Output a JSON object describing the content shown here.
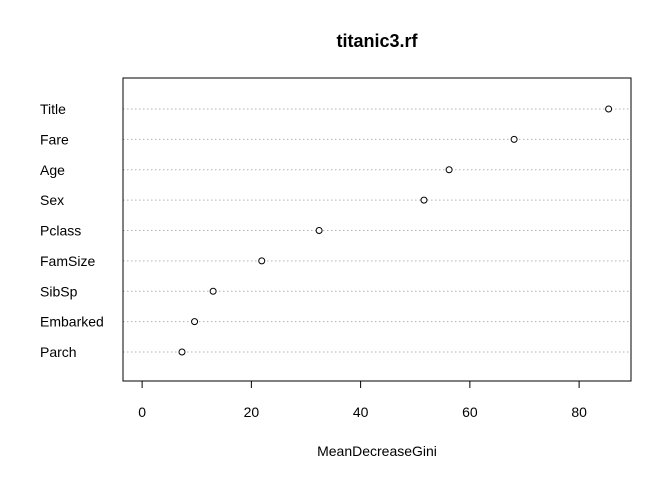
{
  "chart_data": {
    "type": "scatter",
    "title": "titanic3.rf",
    "xlabel": "MeanDecreaseGini",
    "ylabel": "",
    "xlim": [
      -3.5,
      89.5
    ],
    "xticks": [
      0,
      20,
      40,
      60,
      80
    ],
    "grid": "horizontal dotted",
    "categories": [
      "Title",
      "Fare",
      "Age",
      "Sex",
      "Pclass",
      "FamSize",
      "SibSp",
      "Embarked",
      "Parch"
    ],
    "values": [
      85.4,
      68.1,
      56.2,
      51.6,
      32.4,
      21.9,
      13.0,
      9.6,
      7.3
    ]
  }
}
